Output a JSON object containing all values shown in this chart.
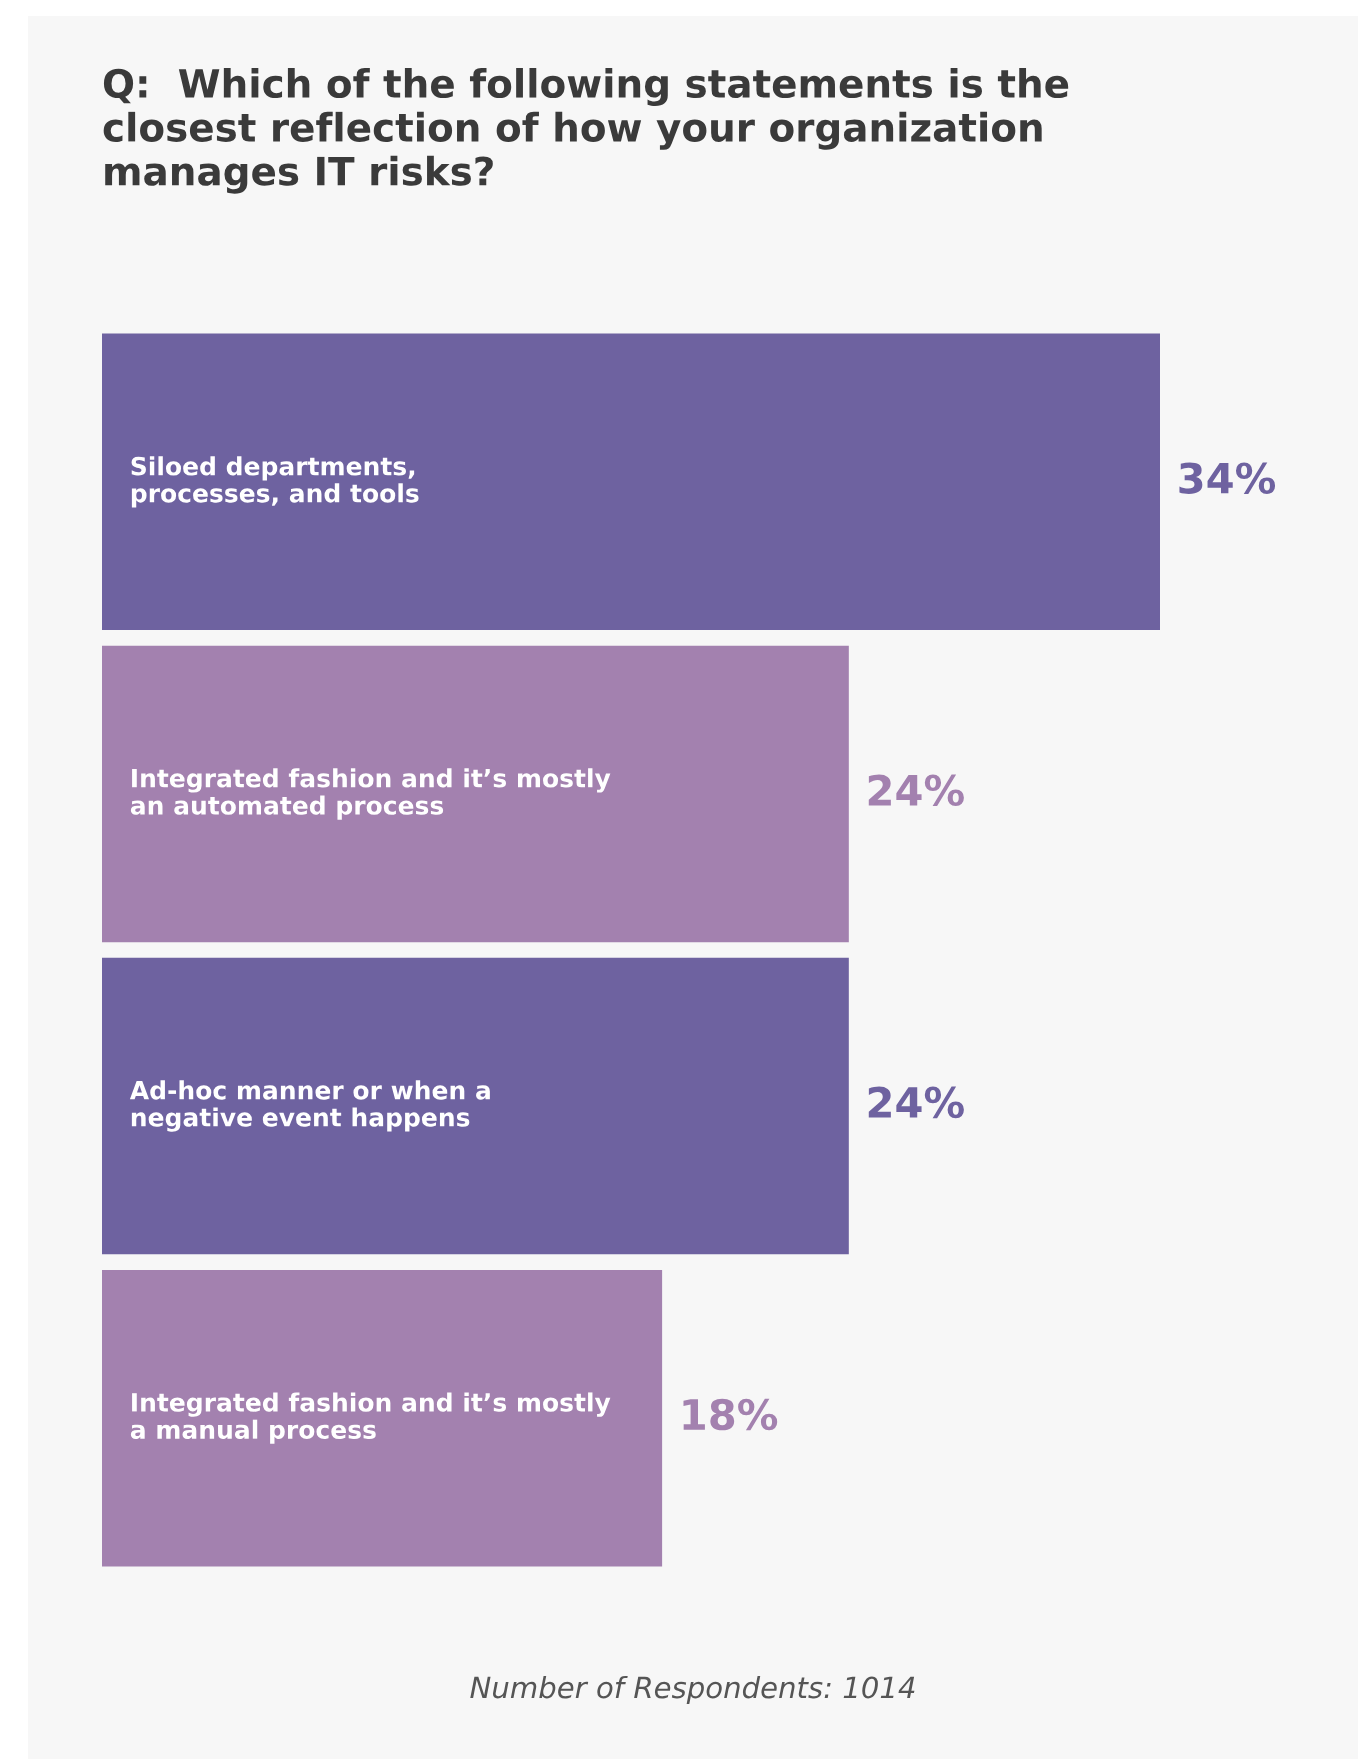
{
  "chart_data": {
    "type": "bar",
    "orientation": "horizontal",
    "title": "Q:  Which of the following statements is the\nclosest reflection of how your organization\nmanages IT risks?",
    "categories": [
      "Siloed departments,\nprocesses, and tools",
      "Integrated fashion and it’s mostly\nan automated process",
      "Ad-hoc manner or when a\nnegative event happens",
      "Integrated fashion and it’s mostly\na manual process"
    ],
    "values": [
      34,
      24,
      24,
      18
    ],
    "value_labels": [
      "34%",
      "24%",
      "24%",
      "18%"
    ],
    "colors": [
      "#6e62a0",
      "#a381af",
      "#6e62a0",
      "#a381af"
    ],
    "annotations": [
      "Number of Respondents: 1014"
    ]
  }
}
